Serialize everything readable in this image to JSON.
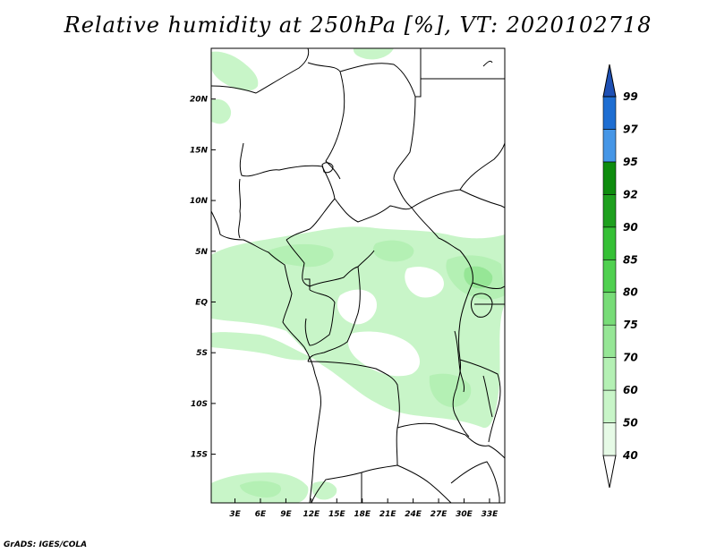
{
  "title": "Relative humidity at 250hPa [%], VT: 2020102718",
  "credit": "GrADS: IGES/COLA",
  "map": {
    "lon_labels": [
      "3E",
      "6E",
      "9E",
      "12E",
      "15E",
      "18E",
      "21E",
      "24E",
      "27E",
      "30E",
      "33E"
    ],
    "lon_values": [
      3,
      6,
      9,
      12,
      15,
      18,
      21,
      24,
      27,
      30,
      33
    ],
    "lat_labels": [
      "20N",
      "15N",
      "10N",
      "5N",
      "EQ",
      "5S",
      "10S",
      "15S"
    ],
    "lat_values": [
      20,
      15,
      10,
      5,
      0,
      -5,
      -10,
      -15
    ],
    "lon_range": [
      0.2,
      34.8
    ],
    "lat_range": [
      -19.8,
      25
    ]
  },
  "colorbar": {
    "levels": [
      "40",
      "50",
      "60",
      "70",
      "75",
      "80",
      "85",
      "90",
      "92",
      "95",
      "97",
      "99"
    ],
    "colors": [
      "#ffffff",
      "#e6fae6",
      "#c8f5c8",
      "#b4f0b4",
      "#96e696",
      "#78dc78",
      "#50d050",
      "#36c036",
      "#1ea01e",
      "#0e8c0e",
      "#4696e6",
      "#1e6ed2",
      "#1e50b4"
    ]
  },
  "colors": {
    "land_outline": "#000000",
    "humid_light": "#c8f5c8",
    "humid_mid": "#b4f0b4",
    "humid_dark": "#96e696"
  }
}
